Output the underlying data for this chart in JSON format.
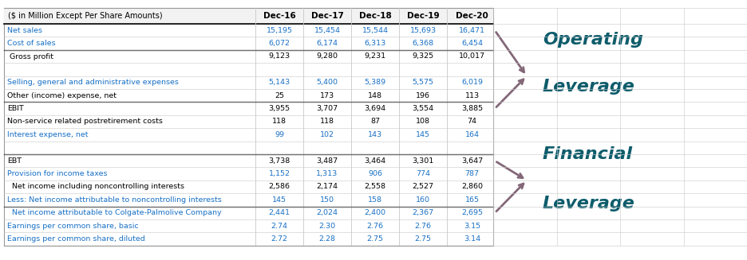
{
  "header": [
    "($ in Million Except Per Share Amounts)",
    "Dec-16",
    "Dec-17",
    "Dec-18",
    "Dec-19",
    "Dec-20"
  ],
  "rows": [
    {
      "label": "Net sales",
      "values": [
        "15,195",
        "15,454",
        "15,544",
        "15,693",
        "16,471"
      ],
      "blue": true,
      "border_top": false
    },
    {
      "label": "Cost of sales",
      "values": [
        "6,072",
        "6,174",
        "6,313",
        "6,368",
        "6,454"
      ],
      "blue": true,
      "border_top": false
    },
    {
      "label": " Gross profit",
      "values": [
        "9,123",
        "9,280",
        "9,231",
        "9,325",
        "10,017"
      ],
      "blue": false,
      "border_top": true
    },
    {
      "label": "",
      "values": [
        "",
        "",
        "",
        "",
        ""
      ],
      "blue": false,
      "border_top": false
    },
    {
      "label": "Selling, general and administrative expenses",
      "values": [
        "5,143",
        "5,400",
        "5,389",
        "5,575",
        "6,019"
      ],
      "blue": true,
      "border_top": false
    },
    {
      "label": "Other (income) expense, net",
      "values": [
        "25",
        "173",
        "148",
        "196",
        "113"
      ],
      "blue": false,
      "border_top": false
    },
    {
      "label": "EBIT",
      "values": [
        "3,955",
        "3,707",
        "3,694",
        "3,554",
        "3,885"
      ],
      "blue": false,
      "border_top": true
    },
    {
      "label": "Non-service related postretirement costs",
      "values": [
        "118",
        "118",
        "87",
        "108",
        "74"
      ],
      "blue": false,
      "border_top": false
    },
    {
      "label": "Interest expense, net",
      "values": [
        "99",
        "102",
        "143",
        "145",
        "164"
      ],
      "blue": true,
      "border_top": false
    },
    {
      "label": "",
      "values": [
        "",
        "",
        "",
        "",
        ""
      ],
      "blue": false,
      "border_top": false
    },
    {
      "label": "EBT",
      "values": [
        "3,738",
        "3,487",
        "3,464",
        "3,301",
        "3,647"
      ],
      "blue": false,
      "border_top": true
    },
    {
      "label": "Provision for income taxes",
      "values": [
        "1,152",
        "1,313",
        "906",
        "774",
        "787"
      ],
      "blue": true,
      "border_top": false
    },
    {
      "label": "  Net income including noncontrolling interests",
      "values": [
        "2,586",
        "2,174",
        "2,558",
        "2,527",
        "2,860"
      ],
      "blue": false,
      "border_top": false
    },
    {
      "label": "Less: Net income attributable to noncontrolling interests",
      "values": [
        "145",
        "150",
        "158",
        "160",
        "165"
      ],
      "blue": true,
      "border_top": false
    },
    {
      "label": "  Net income attributable to Colgate-Palmolive Company",
      "values": [
        "2,441",
        "2,024",
        "2,400",
        "2,367",
        "2,695"
      ],
      "blue": true,
      "border_top": true
    },
    {
      "label": "Earnings per common share, basic",
      "values": [
        "2.74",
        "2.30",
        "2.76",
        "2.76",
        "3.15"
      ],
      "blue": true,
      "border_top": false
    },
    {
      "label": "Earnings per common share, diluted",
      "values": [
        "2.72",
        "2.28",
        "2.75",
        "2.75",
        "3.14"
      ],
      "blue": true,
      "border_top": false
    }
  ],
  "blue_color": "#1870C5",
  "black_color": "#000000",
  "leverage_color": "#0D5C6B",
  "arrow_color": "#836878",
  "grid_line_color": "#C8C8C8",
  "header_border_color": "#000000",
  "table_border_color": "#999999"
}
